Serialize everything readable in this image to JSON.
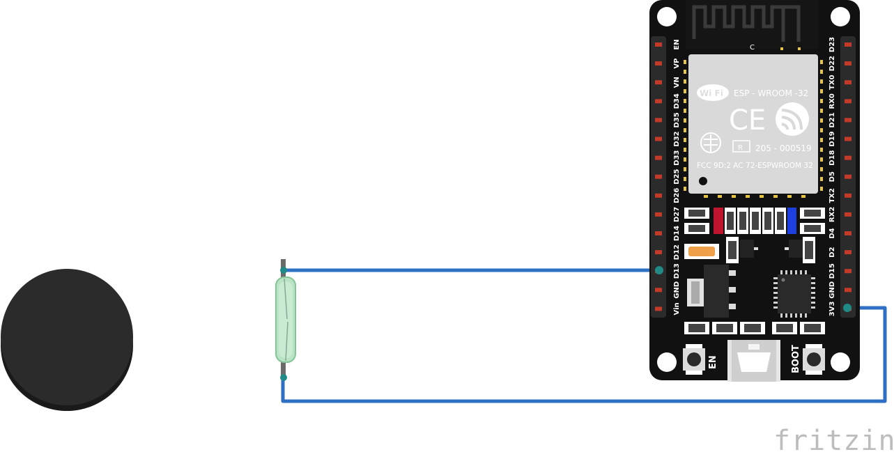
{
  "board": {
    "left_pins": [
      "EN",
      "VP",
      "VN",
      "D34",
      "D35",
      "D32",
      "D33",
      "D25",
      "D26",
      "D27",
      "D14",
      "D12",
      "D13",
      "GND",
      "Vin"
    ],
    "right_pins": [
      "D23",
      "D22",
      "TX0",
      "RX0",
      "D21",
      "D19",
      "D18",
      "D5",
      "TX2",
      "RX2",
      "D4",
      "D2",
      "D15",
      "GND",
      "3V3"
    ],
    "module_name": "ESP - WROOM -32",
    "wifi_logo": "Wi Fi",
    "ce_mark": "CE",
    "cert_r": "R",
    "cert_number": "205 - 000519",
    "fcc_text": "FCC 9D:2 AC 72-ESPWROOM  32",
    "antenna_mark": "C",
    "en_button_label": "EN",
    "boot_button_label": "BOOT"
  },
  "components": {
    "magnet": "magnet",
    "reed_switch": "reed-switch"
  },
  "colors": {
    "wire": "#2f6fc4",
    "wire_end": "#1f8a86",
    "board": "#111111",
    "module": "#d9d9d9",
    "magnet": "#2b2b2b",
    "reed_glass": "#b8e3c4"
  },
  "watermark": "fritzing"
}
